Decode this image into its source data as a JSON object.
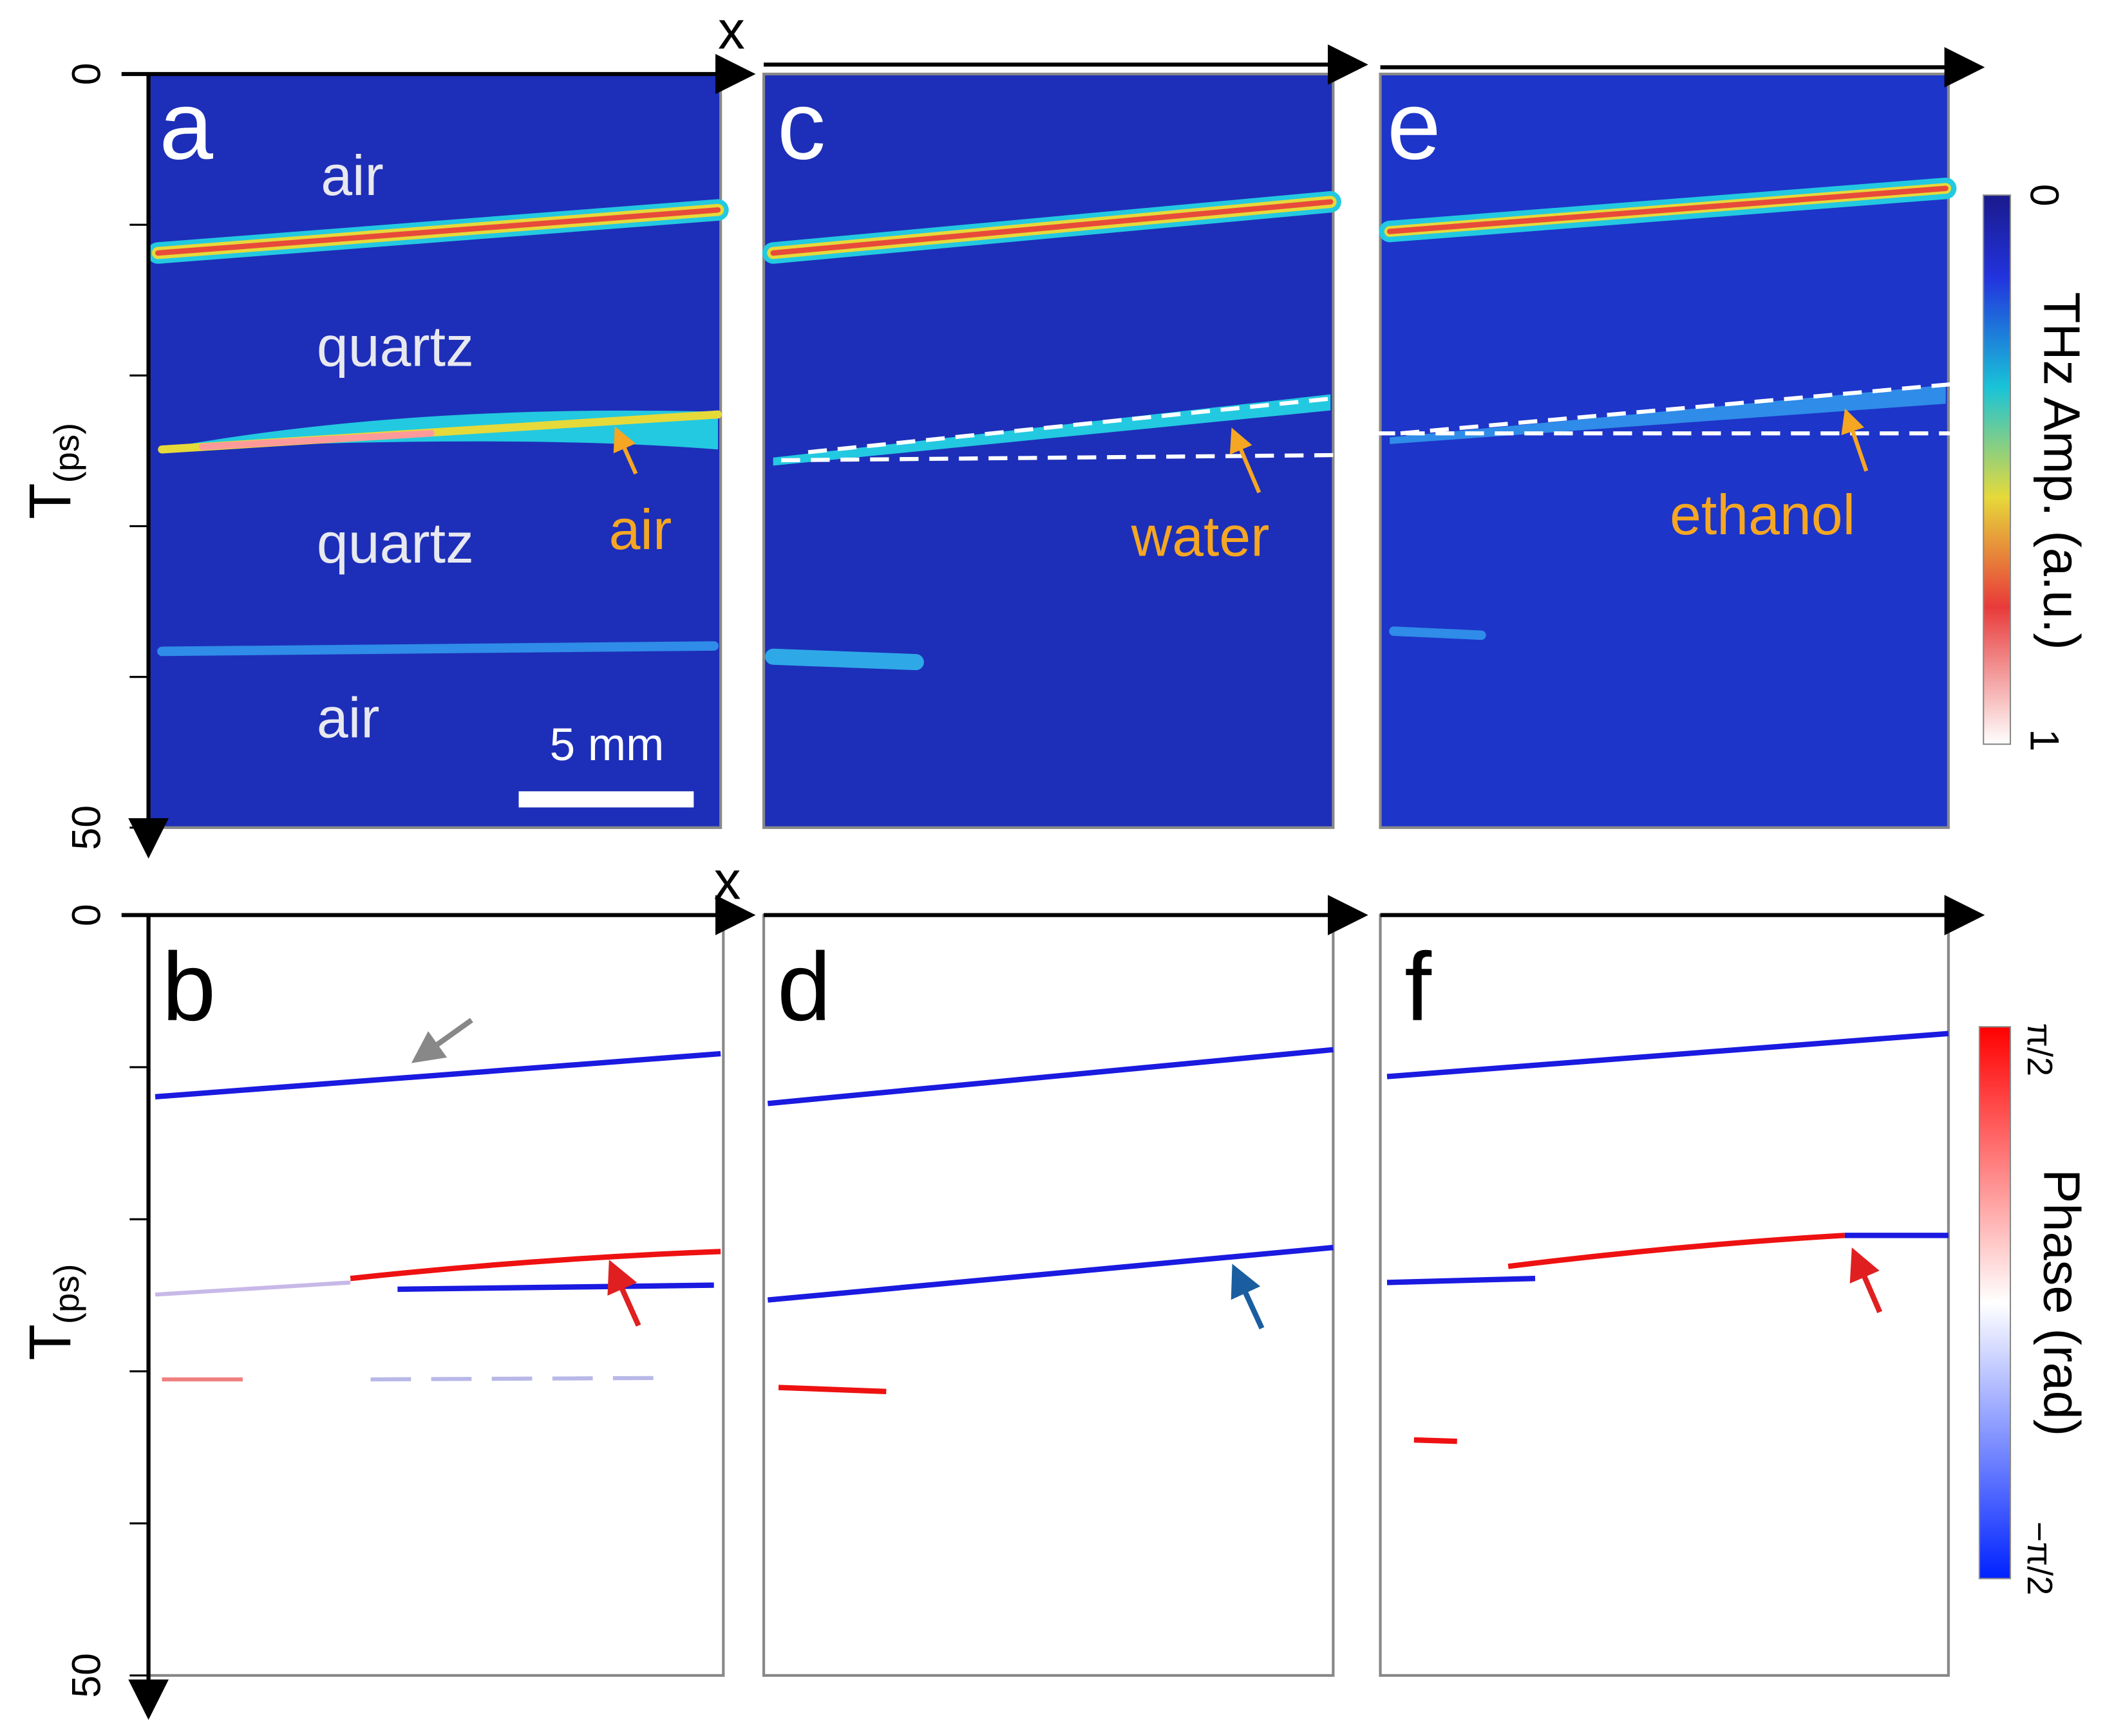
{
  "top_row": {
    "x_label": "x",
    "t_label": "T",
    "t_unit": "(ps)",
    "t_ticks": [
      "0",
      "50"
    ],
    "panels": [
      {
        "letter": "a",
        "annotations": [
          "air",
          "quartz",
          "quartz",
          "air"
        ],
        "arrow_label": "air",
        "scale_bar": "5 mm"
      },
      {
        "letter": "c",
        "arrow_label": "water"
      },
      {
        "letter": "e",
        "arrow_label": "ethanol"
      }
    ],
    "colorbar": {
      "title": "THz Amp. (a.u.)",
      "min": "0",
      "max": "1"
    }
  },
  "bottom_row": {
    "x_label": "x",
    "t_label": "T",
    "t_unit": "(ps)",
    "t_ticks": [
      "0",
      "50"
    ],
    "panels": [
      {
        "letter": "b"
      },
      {
        "letter": "d"
      },
      {
        "letter": "f"
      }
    ],
    "colorbar": {
      "title": "Phase (rad)",
      "max": "π/2",
      "min": "−π/2"
    }
  }
}
